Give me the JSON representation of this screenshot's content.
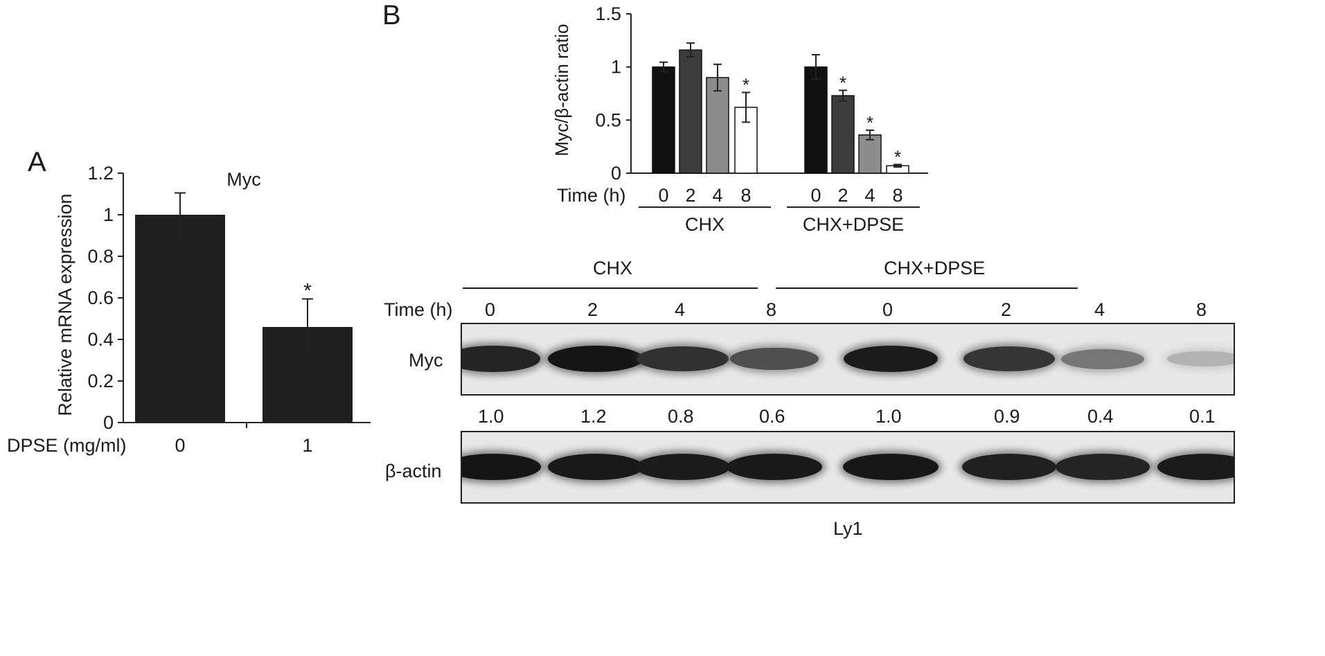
{
  "figure": {
    "panel_a_letter": "A",
    "panel_b_letter": "B"
  },
  "chart_data": [
    {
      "type": "bar",
      "panel": "A",
      "title": "Myc",
      "xlabel": "DPSE (mg/ml)",
      "ylabel": "Relative mRNA expression",
      "categories": [
        "0",
        "1"
      ],
      "values": [
        1.0,
        0.46
      ],
      "errors": [
        0.105,
        0.135
      ],
      "significance": [
        "",
        "*"
      ],
      "ylim": [
        0,
        1.2
      ],
      "yticks": [
        "0",
        "0.2",
        "0.4",
        "0.6",
        "0.8",
        "1",
        "1.2"
      ],
      "color": "#1f1f1f",
      "grid": false
    },
    {
      "type": "bar",
      "panel": "B",
      "ylabel": "Myc/β-actin ratio",
      "time_label": "Time (h)",
      "groups": [
        {
          "name": "CHX",
          "categories": [
            "0",
            "2",
            "4",
            "8"
          ],
          "values": [
            1.0,
            1.16,
            0.9,
            0.62
          ],
          "errors": [
            0.045,
            0.065,
            0.125,
            0.14
          ],
          "significance": [
            "",
            "",
            "",
            "*"
          ]
        },
        {
          "name": "CHX+DPSE",
          "categories": [
            "0",
            "2",
            "4",
            "8"
          ],
          "values": [
            1.0,
            0.73,
            0.36,
            0.07
          ],
          "errors": [
            0.115,
            0.05,
            0.045,
            0.012
          ],
          "significance": [
            "",
            "*",
            "*",
            "*"
          ]
        }
      ],
      "bar_colors": [
        "#111111",
        "#3c3c3c",
        "#8c8c8c",
        "#ffffff"
      ],
      "ylim": [
        0,
        1.5
      ],
      "yticks": [
        "0",
        "0.5",
        "1",
        "1.5"
      ],
      "grid": false
    }
  ],
  "blot": {
    "groups": [
      "CHX",
      "CHX+DPSE"
    ],
    "time_label": "Time (h)",
    "times": [
      "0",
      "2",
      "4",
      "8",
      "0",
      "2",
      "4",
      "8"
    ],
    "rows": [
      {
        "label": "Myc",
        "intensity": [
          0.88,
          0.95,
          0.82,
          0.68,
          0.92,
          0.8,
          0.5,
          0.22
        ]
      },
      {
        "label": "β-actin",
        "intensity": [
          0.95,
          0.93,
          0.92,
          0.93,
          0.94,
          0.9,
          0.88,
          0.92
        ]
      }
    ],
    "ratios": [
      "1.0",
      "1.2",
      "0.8",
      "0.6",
      "1.0",
      "0.9",
      "0.4",
      "0.1"
    ],
    "cell_line": "Ly1"
  }
}
